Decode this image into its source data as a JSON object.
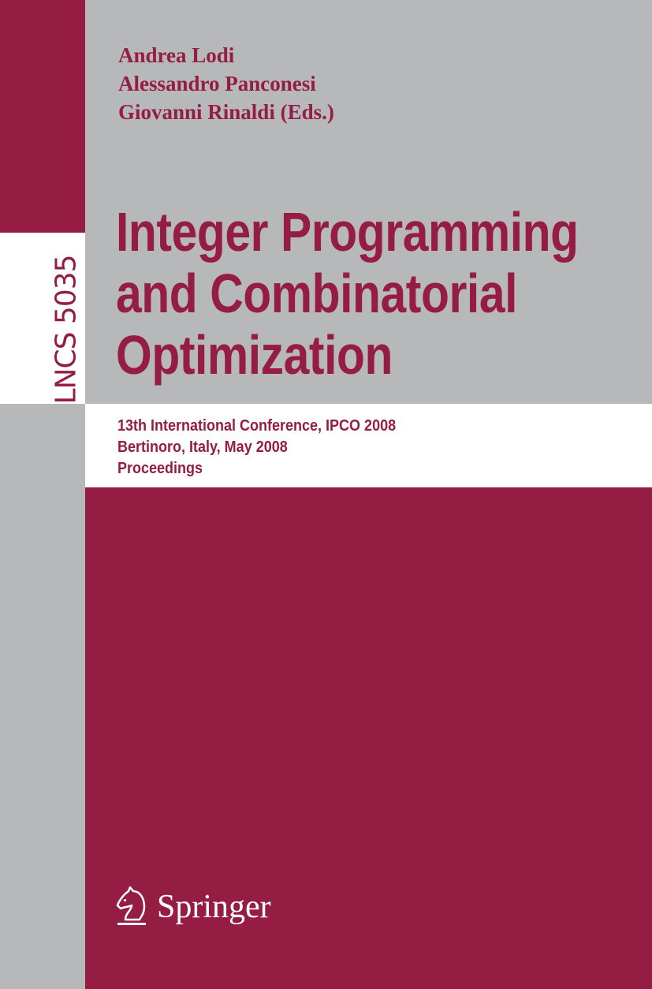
{
  "cover": {
    "colors": {
      "accent": "#951c43",
      "gray": "#b7b8ba",
      "white": "#ffffff"
    },
    "authors": [
      "Andrea Lodi",
      "Alessandro Panconesi",
      "Giovanni Rinaldi (Eds.)"
    ],
    "series_label": "LNCS 5035",
    "title_lines": [
      "Integer Programming",
      "and Combinatorial",
      "Optimization"
    ],
    "subtitle_lines": [
      "13th International Conference, IPCO 2008",
      "Bertinoro, Italy, May 2008",
      "Proceedings"
    ],
    "publisher": {
      "name": "Springer",
      "icon": "knight-chess-piece-icon"
    }
  }
}
